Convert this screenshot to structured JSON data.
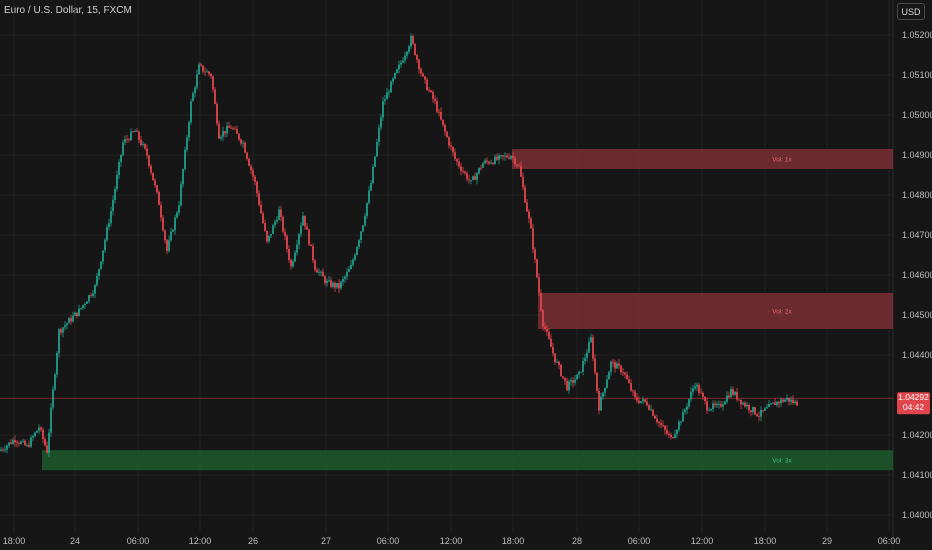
{
  "header": {
    "symbol_title": "Euro / U.S. Dollar, 15, FXCM",
    "currency_button": "USD"
  },
  "colors": {
    "background": "#161616",
    "grid": "#232323",
    "up": "#1f9f8a",
    "down": "#e0454c",
    "supply_zone": "#7a2f33",
    "demand_zone": "#1d5a2b",
    "price_line": "#c9464d"
  },
  "price_tag": {
    "price": "1.04292",
    "countdown": "04:42"
  },
  "chart_data": {
    "type": "candlestick",
    "ylim": [
      1.04,
      1.0523
    ],
    "grid": true,
    "x_ticks": [
      "18:00",
      "24",
      "06:00",
      "12:00",
      "26",
      "27",
      "06:00",
      "12:00",
      "18:00",
      "28",
      "06:00",
      "12:00",
      "18:00",
      "29",
      "06:00"
    ],
    "y_ticks": [
      "1.05200",
      "1.05100",
      "1.05000",
      "1.04900",
      "1.04800",
      "1.04700",
      "1.04600",
      "1.04500",
      "1.04400",
      "1.04200",
      "1.04100",
      "1.04000"
    ],
    "y_tick_values": [
      1.052,
      1.051,
      1.05,
      1.049,
      1.048,
      1.047,
      1.046,
      1.045,
      1.044,
      1.042,
      1.041,
      1.04
    ],
    "last_price": 1.04292,
    "zones": [
      {
        "label": "Vol: 1x",
        "type": "supply",
        "top": 1.04915,
        "bottom": 1.04865
      },
      {
        "label": "Vol: 2x",
        "type": "supply",
        "top": 1.04555,
        "bottom": 1.04465
      },
      {
        "label": "Vol: 3x",
        "type": "demand",
        "top": 1.04162,
        "bottom": 1.04112
      }
    ],
    "path_keypoints": [
      [
        0,
        1.0416
      ],
      [
        8,
        1.0419
      ],
      [
        14,
        1.0417
      ],
      [
        20,
        1.0422
      ],
      [
        24,
        1.0416
      ],
      [
        30,
        1.0446
      ],
      [
        40,
        1.0451
      ],
      [
        48,
        1.0457
      ],
      [
        56,
        1.0476
      ],
      [
        62,
        1.0493
      ],
      [
        68,
        1.0496
      ],
      [
        74,
        1.049
      ],
      [
        80,
        1.0478
      ],
      [
        84,
        1.0466
      ],
      [
        90,
        1.0478
      ],
      [
        96,
        1.0503
      ],
      [
        100,
        1.0512
      ],
      [
        106,
        1.051
      ],
      [
        110,
        1.0495
      ],
      [
        116,
        1.0497
      ],
      [
        122,
        1.0493
      ],
      [
        128,
        1.0483
      ],
      [
        134,
        1.0468
      ],
      [
        140,
        1.0476
      ],
      [
        146,
        1.0462
      ],
      [
        152,
        1.0475
      ],
      [
        158,
        1.0462
      ],
      [
        164,
        1.0458
      ],
      [
        170,
        1.0457
      ],
      [
        176,
        1.0462
      ],
      [
        182,
        1.0473
      ],
      [
        186,
        1.0483
      ],
      [
        192,
        1.0503
      ],
      [
        200,
        1.0512
      ],
      [
        206,
        1.0519
      ],
      [
        212,
        1.0509
      ],
      [
        218,
        1.0503
      ],
      [
        222,
        1.0497
      ],
      [
        228,
        1.0489
      ],
      [
        236,
        1.0483
      ],
      [
        242,
        1.0488
      ],
      [
        250,
        1.0489
      ],
      [
        256,
        1.049
      ],
      [
        260,
        1.0487
      ],
      [
        266,
        1.0471
      ],
      [
        272,
        1.0448
      ],
      [
        278,
        1.0439
      ],
      [
        284,
        1.0432
      ],
      [
        290,
        1.0435
      ],
      [
        296,
        1.0444
      ],
      [
        300,
        1.0427
      ],
      [
        306,
        1.0438
      ],
      [
        312,
        1.0436
      ],
      [
        318,
        1.0429
      ],
      [
        324,
        1.0428
      ],
      [
        330,
        1.0423
      ],
      [
        336,
        1.0419
      ],
      [
        342,
        1.0425
      ],
      [
        348,
        1.0433
      ],
      [
        354,
        1.0427
      ],
      [
        360,
        1.0427
      ],
      [
        366,
        1.0431
      ],
      [
        372,
        1.0428
      ],
      [
        380,
        1.0425
      ],
      [
        388,
        1.0428
      ],
      [
        394,
        1.0429
      ],
      [
        398,
        1.0428
      ]
    ]
  }
}
